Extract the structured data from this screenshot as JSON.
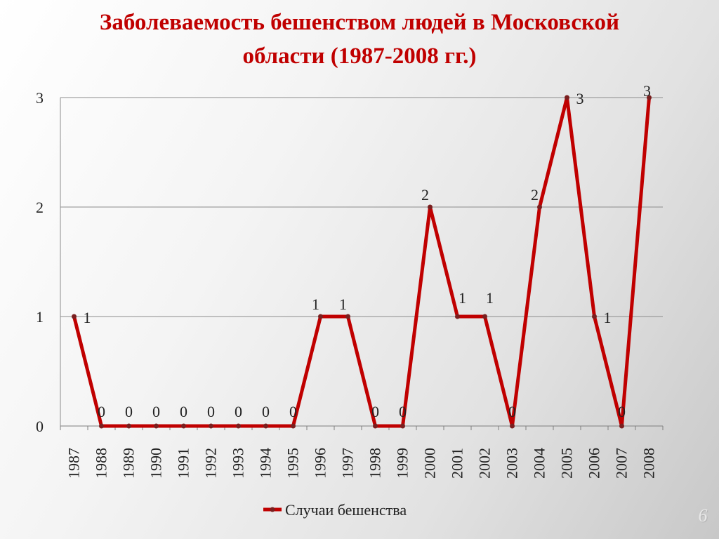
{
  "slide": {
    "title_line1": "Заболеваемость бешенством людей в Московской",
    "title_line2": "области (1987-2008 гг.)",
    "page_number": "6"
  },
  "chart_data": {
    "type": "line",
    "categories": [
      "1987",
      "1988",
      "1989",
      "1990",
      "1991",
      "1992",
      "1993",
      "1994",
      "1995",
      "1996",
      "1997",
      "1998",
      "1999",
      "2000",
      "2001",
      "2002",
      "2003",
      "2004",
      "2005",
      "2006",
      "2007",
      "2008"
    ],
    "series": [
      {
        "name": "Случаи бешенства",
        "color": "#c00000",
        "values": [
          1,
          0,
          0,
          0,
          0,
          0,
          0,
          0,
          0,
          1,
          1,
          0,
          0,
          2,
          1,
          1,
          0,
          2,
          3,
          1,
          0,
          3
        ],
        "labels": [
          "1",
          "0",
          "0",
          "0",
          "0",
          "0",
          "0",
          "0",
          "0",
          "1",
          "1",
          "0",
          "0",
          "2",
          "1",
          "1",
          "0",
          "2",
          "3",
          "1",
          "0",
          "3"
        ]
      }
    ],
    "y_ticks": [
      "0",
      "1",
      "2",
      "3"
    ],
    "ylim": [
      0,
      3
    ],
    "grid": "horizontal",
    "legend_position": "bottom",
    "title": "Заболеваемость бешенством людей в Московской области (1987-2008 гг.)",
    "xlabel": "",
    "ylabel": ""
  }
}
